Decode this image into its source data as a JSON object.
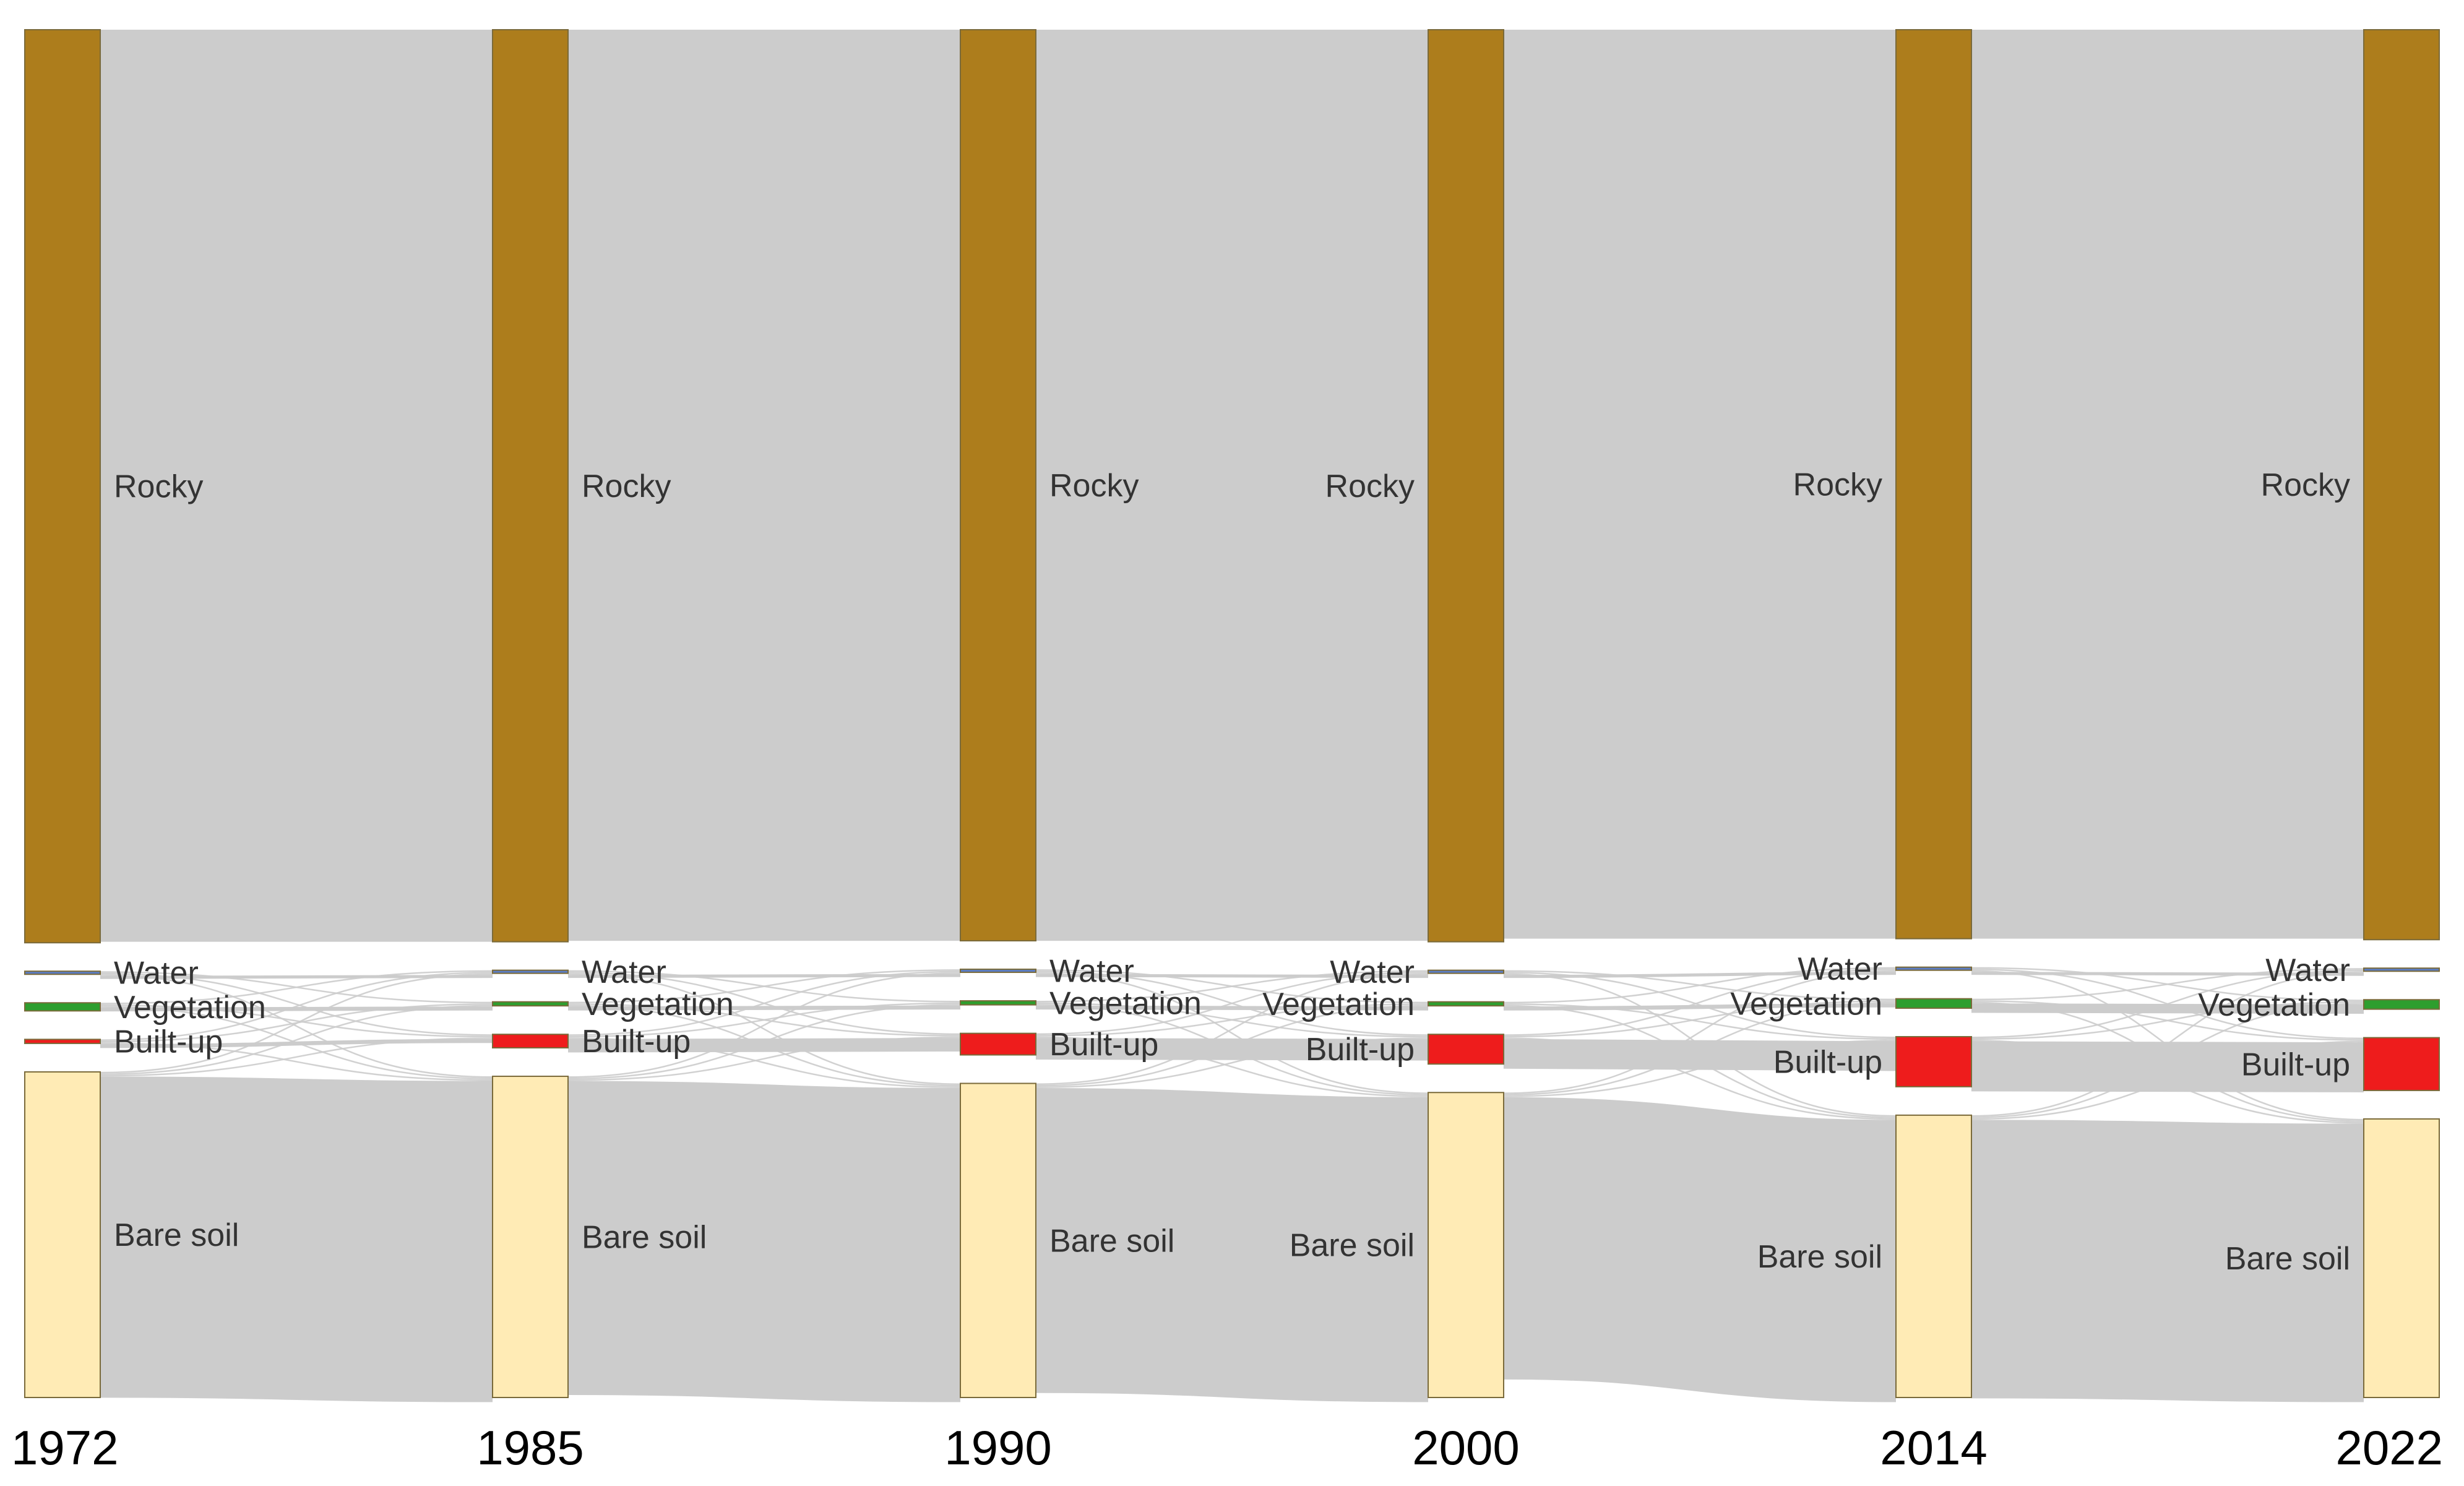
{
  "chart_data": {
    "type": "sankey",
    "title": "",
    "years": [
      "1972",
      "1985",
      "1990",
      "2000",
      "2014",
      "2022"
    ],
    "categories": [
      {
        "name": "Rocky",
        "color": "#AD7D1C"
      },
      {
        "name": "Water",
        "color": "#5B7DC4"
      },
      {
        "name": "Vegetation",
        "color": "#2E9E2E"
      },
      {
        "name": "Built-up",
        "color": "#EE1C1C"
      },
      {
        "name": "Bare soil",
        "color": "#FFEBB5"
      }
    ],
    "flow_color": "#CCCCCC",
    "values_percent": {
      "1972": {
        "Rocky": 67.5,
        "Water": 0.1,
        "Vegetation": 0.6,
        "Built-up": 0.3,
        "Bare soil": 24.2
      },
      "1985": {
        "Rocky": 67.5,
        "Water": 0.1,
        "Vegetation": 0.3,
        "Built-up": 1.0,
        "Bare soil": 23.9
      },
      "1990": {
        "Rocky": 67.5,
        "Water": 0.1,
        "Vegetation": 0.3,
        "Built-up": 1.6,
        "Bare soil": 23.4
      },
      "2000": {
        "Rocky": 67.5,
        "Water": 0.2,
        "Vegetation": 0.3,
        "Built-up": 2.2,
        "Bare soil": 22.6
      },
      "2014": {
        "Rocky": 67.2,
        "Water": 0.2,
        "Vegetation": 0.7,
        "Built-up": 3.7,
        "Bare soil": 20.9
      },
      "2022": {
        "Rocky": 67.2,
        "Water": 0.2,
        "Vegetation": 0.7,
        "Built-up": 3.9,
        "Bare soil": 20.6
      }
    }
  }
}
